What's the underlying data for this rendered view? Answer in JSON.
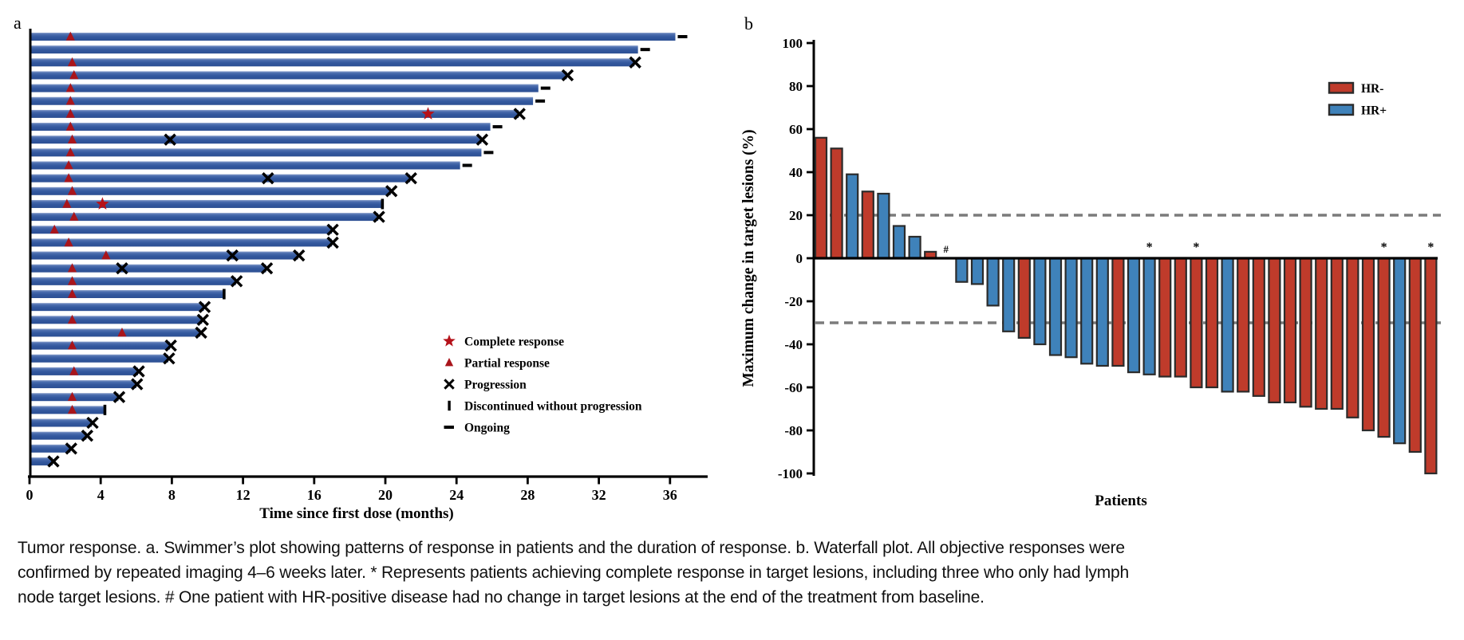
{
  "figure": {
    "panel_a_label": "a",
    "panel_b_label": "b"
  },
  "caption": {
    "lines": [
      "Tumor response. a. Swimmer’s plot showing patterns of response in patients and the duration of response. b. Waterfall plot. All objective responses were",
      "confirmed by repeated imaging 4–6 weeks later. * Represents patients achieving complete response in target lesions, including three who only had lymph",
      "node target lesions. # One patient with HR-positive disease had no change in target lesions at the end of the treatment from baseline."
    ]
  },
  "chart_data": [
    {
      "type": "swimmer",
      "panel": "a",
      "xlabel": "Time since first dose (months)",
      "xlim": [
        0,
        38
      ],
      "x_ticks": [
        0,
        4,
        8,
        12,
        16,
        20,
        24,
        28,
        32,
        36
      ],
      "bar_color": "#33589e",
      "legend": [
        {
          "marker": "star",
          "label": "Complete response",
          "color": "#b5121a"
        },
        {
          "marker": "triangle",
          "label": "Partial response",
          "color": "#a9151b"
        },
        {
          "marker": "cross",
          "label": "Progression",
          "color": "#000000"
        },
        {
          "marker": "vbar",
          "label": "Discontinued without progression",
          "color": "#000000"
        },
        {
          "marker": "dash",
          "label": "Ongoing",
          "color": "#000000"
        }
      ],
      "bars": [
        {
          "d": 36.3,
          "end": "ongoing",
          "tri": 2.3
        },
        {
          "d": 34.2,
          "end": "ongoing"
        },
        {
          "d": 34.0,
          "end": "x",
          "tri": 2.4
        },
        {
          "d": 30.2,
          "end": "x",
          "tri": 2.5
        },
        {
          "d": 28.6,
          "end": "ongoing",
          "tri": 2.3
        },
        {
          "d": 28.3,
          "end": "ongoing",
          "tri": 2.3
        },
        {
          "d": 27.5,
          "end": "x",
          "tri": 2.3,
          "star": 22.4
        },
        {
          "d": 25.9,
          "end": "ongoing",
          "tri": 2.3
        },
        {
          "d": 25.4,
          "end": "x",
          "tri": 2.4,
          "mx": [
            7.9
          ]
        },
        {
          "d": 25.4,
          "end": "ongoing",
          "tri": 2.3
        },
        {
          "d": 24.2,
          "end": "ongoing",
          "tri": 2.2
        },
        {
          "d": 21.4,
          "end": "x",
          "tri": 2.2,
          "mx": [
            13.4
          ]
        },
        {
          "d": 20.3,
          "end": "x",
          "tri": 2.4
        },
        {
          "d": 19.8,
          "end": "disc",
          "tri": 2.1,
          "star": 4.1
        },
        {
          "d": 19.6,
          "end": "x",
          "tri": 2.5
        },
        {
          "d": 17.0,
          "end": "x",
          "tri": 1.4
        },
        {
          "d": 17.0,
          "end": "x",
          "tri": 2.2
        },
        {
          "d": 15.1,
          "end": "x",
          "tri": 4.3,
          "mx": [
            11.4
          ]
        },
        {
          "d": 13.3,
          "end": "x",
          "tri": 2.4,
          "mx": [
            5.2
          ]
        },
        {
          "d": 11.6,
          "end": "x",
          "tri": 2.4
        },
        {
          "d": 10.9,
          "end": "disc",
          "tri": 2.4
        },
        {
          "d": 9.8,
          "end": "x"
        },
        {
          "d": 9.7,
          "end": "x",
          "tri": 2.4
        },
        {
          "d": 9.6,
          "end": "x",
          "tri": 5.2
        },
        {
          "d": 7.9,
          "end": "x",
          "tri": 2.4
        },
        {
          "d": 7.8,
          "end": "x"
        },
        {
          "d": 6.1,
          "end": "x",
          "tri": 2.5
        },
        {
          "d": 6.0,
          "end": "x"
        },
        {
          "d": 5.0,
          "end": "x",
          "tri": 2.4
        },
        {
          "d": 4.2,
          "end": "disc",
          "tri": 2.4
        },
        {
          "d": 3.5,
          "end": "x"
        },
        {
          "d": 3.2,
          "end": "x"
        },
        {
          "d": 2.3,
          "end": "x"
        },
        {
          "d": 1.3,
          "end": "x"
        }
      ]
    },
    {
      "type": "bar",
      "panel": "b",
      "xlabel": "Patients",
      "ylabel": "Maximum change in target lesions (%)",
      "ylim": [
        -100,
        100
      ],
      "y_ticks": [
        100,
        80,
        60,
        40,
        20,
        0,
        -20,
        -40,
        -60,
        -80,
        -100
      ],
      "reference_lines": [
        20,
        -30
      ],
      "groups": {
        "HR-": "#bf3b2b",
        "HR+": "#3f82ba"
      },
      "legend": [
        {
          "label": "HR-",
          "color": "#bf3b2b"
        },
        {
          "label": "HR+",
          "color": "#3f82ba"
        }
      ],
      "patients": [
        {
          "value": 56,
          "group": "HR-"
        },
        {
          "value": 51,
          "group": "HR-"
        },
        {
          "value": 39,
          "group": "HR+"
        },
        {
          "value": 31,
          "group": "HR-"
        },
        {
          "value": 30,
          "group": "HR+"
        },
        {
          "value": 15,
          "group": "HR+"
        },
        {
          "value": 10,
          "group": "HR+"
        },
        {
          "value": 3,
          "group": "HR-"
        },
        {
          "value": 0,
          "group": "HR+",
          "mark": "#"
        },
        {
          "value": -11,
          "group": "HR+"
        },
        {
          "value": -12,
          "group": "HR+"
        },
        {
          "value": -22,
          "group": "HR+"
        },
        {
          "value": -34,
          "group": "HR+"
        },
        {
          "value": -37,
          "group": "HR-"
        },
        {
          "value": -40,
          "group": "HR+"
        },
        {
          "value": -45,
          "group": "HR+"
        },
        {
          "value": -46,
          "group": "HR+"
        },
        {
          "value": -49,
          "group": "HR+"
        },
        {
          "value": -50,
          "group": "HR+"
        },
        {
          "value": -50,
          "group": "HR-"
        },
        {
          "value": -53,
          "group": "HR+"
        },
        {
          "value": -54,
          "group": "HR+",
          "mark": "*"
        },
        {
          "value": -55,
          "group": "HR-"
        },
        {
          "value": -55,
          "group": "HR-"
        },
        {
          "value": -60,
          "group": "HR-",
          "mark": "*"
        },
        {
          "value": -60,
          "group": "HR-"
        },
        {
          "value": -62,
          "group": "HR+"
        },
        {
          "value": -62,
          "group": "HR-"
        },
        {
          "value": -64,
          "group": "HR-"
        },
        {
          "value": -67,
          "group": "HR-"
        },
        {
          "value": -67,
          "group": "HR-"
        },
        {
          "value": -69,
          "group": "HR-"
        },
        {
          "value": -70,
          "group": "HR-"
        },
        {
          "value": -70,
          "group": "HR-"
        },
        {
          "value": -74,
          "group": "HR-"
        },
        {
          "value": -80,
          "group": "HR-"
        },
        {
          "value": -83,
          "group": "HR-",
          "mark": "*"
        },
        {
          "value": -86,
          "group": "HR+"
        },
        {
          "value": -90,
          "group": "HR-"
        },
        {
          "value": -100,
          "group": "HR-",
          "mark": "*"
        }
      ]
    }
  ]
}
